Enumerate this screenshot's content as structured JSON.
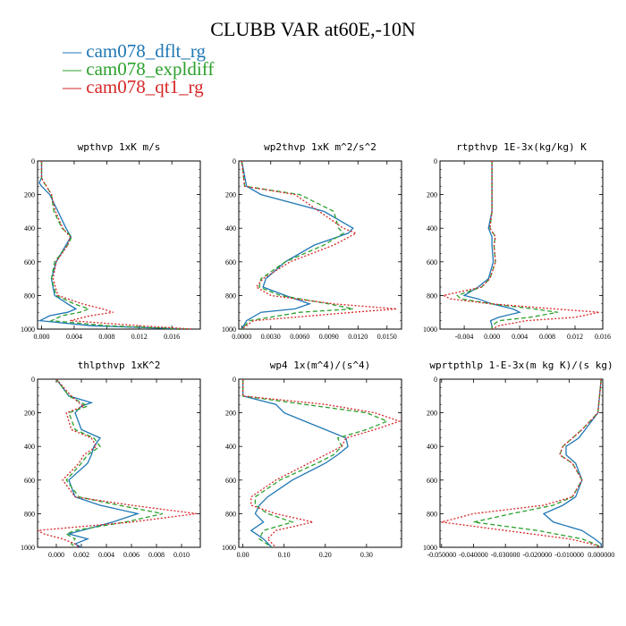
{
  "title": "CLUBB VAR at60E,-10N",
  "legend": [
    {
      "label": "— cam078_dflt_rg",
      "color": "#1f77b4"
    },
    {
      "label": "— cam078_expldiff",
      "color": "#2ca02c"
    },
    {
      "label": "— cam078_qt1_rg",
      "color": "#d62728"
    }
  ],
  "series_names": [
    "cam078_dflt_rg",
    "cam078_expldiff",
    "cam078_qt1_rg"
  ],
  "series_colors": [
    "#1f77b4",
    "#2ca02c",
    "#d62728"
  ],
  "series_dash": [
    "",
    "5 3",
    "2 2"
  ],
  "chart_data": [
    {
      "type": "line",
      "title": "wpthvp  1xK m/s",
      "xlim": [
        -0.0005,
        0.0195
      ],
      "ylim": [
        1000,
        0
      ],
      "xticks": [
        0.0,
        0.004,
        0.008,
        0.012,
        0.016
      ],
      "xtick_labels": [
        "0.000",
        "0.004",
        "0.008",
        "0.012",
        "0.016"
      ],
      "yticks": [
        0,
        200,
        400,
        600,
        800,
        1000
      ],
      "ytick_labels": [
        "0",
        "200",
        "400",
        "600",
        "800",
        "1000"
      ],
      "y": [
        0,
        100,
        130,
        150,
        200,
        300,
        400,
        450,
        500,
        600,
        700,
        800,
        850,
        880,
        900,
        920,
        950,
        980,
        1000
      ],
      "series": [
        {
          "name": "cam078_dflt_rg",
          "x": [
            0.0,
            0.0,
            -0.0003,
            0.0,
            0.001,
            0.002,
            0.003,
            0.0036,
            0.003,
            0.0018,
            0.0012,
            0.0016,
            0.0032,
            0.0042,
            0.0032,
            0.001,
            -0.0002,
            0.006,
            0.018
          ]
        },
        {
          "name": "cam078_expldiff",
          "x": [
            0.0,
            0.0,
            0.0003,
            0.0006,
            0.0012,
            0.0015,
            0.0025,
            0.0037,
            0.0032,
            0.0016,
            0.0012,
            0.0018,
            0.004,
            0.0058,
            0.0047,
            0.0025,
            0.0012,
            0.008,
            0.018
          ]
        },
        {
          "name": "cam078_qt1_rg",
          "x": [
            0.0,
            0.0,
            0.0003,
            0.0006,
            0.0012,
            0.0017,
            0.0026,
            0.0035,
            0.0032,
            0.0018,
            0.0014,
            0.002,
            0.005,
            0.0075,
            0.0088,
            0.006,
            0.0035,
            0.012,
            0.0185
          ]
        }
      ]
    },
    {
      "type": "line",
      "title": "wp2thvp  1xK m^2/s^2",
      "xlim": [
        -0.0003,
        0.0165
      ],
      "ylim": [
        1000,
        0
      ],
      "xticks": [
        0.0,
        0.003,
        0.006,
        0.009,
        0.012,
        0.015
      ],
      "xtick_labels": [
        "0.0000",
        "0.0030",
        "0.0060",
        "0.0090",
        "0.0120",
        "0.0150"
      ],
      "yticks": [
        0,
        200,
        400,
        600,
        800,
        1000
      ],
      "ytick_labels": [
        "0",
        "200",
        "400",
        "600",
        "800",
        "1000"
      ],
      "y": [
        0,
        150,
        200,
        300,
        400,
        430,
        500,
        600,
        700,
        750,
        800,
        850,
        880,
        900,
        950,
        1000
      ],
      "series": [
        {
          "name": "cam078_dflt_rg",
          "x": [
            0.0,
            0.0005,
            0.002,
            0.0085,
            0.0115,
            0.011,
            0.0075,
            0.0045,
            0.0025,
            0.0022,
            0.0045,
            0.007,
            0.0055,
            0.002,
            0.0005,
            0.0
          ],
          "y": [
            0,
            150,
            200,
            300,
            400,
            430,
            500,
            600,
            700,
            750,
            800,
            850,
            880,
            900,
            950,
            1000
          ]
        },
        {
          "name": "cam078_expldiff",
          "x": [
            0.0,
            0.0003,
            0.006,
            0.0095,
            0.01,
            0.0105,
            0.0085,
            0.0045,
            0.002,
            0.0018,
            0.004,
            0.009,
            0.0115,
            0.006,
            0.0008,
            0.0
          ],
          "y": [
            0,
            150,
            200,
            300,
            400,
            430,
            500,
            600,
            700,
            750,
            800,
            850,
            880,
            900,
            950,
            1000
          ]
        },
        {
          "name": "cam078_qt1_rg",
          "x": [
            0.0,
            0.0003,
            0.0055,
            0.008,
            0.0105,
            0.0118,
            0.0095,
            0.005,
            0.0022,
            0.0015,
            0.003,
            0.0095,
            0.016,
            0.0115,
            0.0012,
            0.0
          ],
          "y": [
            0,
            150,
            200,
            300,
            400,
            430,
            500,
            600,
            700,
            750,
            800,
            850,
            880,
            900,
            950,
            1000
          ]
        }
      ]
    },
    {
      "type": "line",
      "title": "rtpthvp  1E-3x(kg/kg) K",
      "xlim": [
        -0.0075,
        0.016
      ],
      "ylim": [
        1000,
        0
      ],
      "xticks": [
        -0.004,
        0.0,
        0.004,
        0.008,
        0.012,
        0.016
      ],
      "xtick_labels": [
        "-0.004",
        "0.000",
        "0.004",
        "0.008",
        "0.012",
        "0.016"
      ],
      "yticks": [
        0,
        200,
        400,
        600,
        800,
        1000
      ],
      "ytick_labels": [
        "0",
        "200",
        "400",
        "600",
        "800",
        "1000"
      ],
      "y": [
        0,
        300,
        400,
        450,
        500,
        600,
        700,
        750,
        800,
        820,
        850,
        880,
        900,
        930,
        950,
        980,
        1000
      ],
      "series": [
        {
          "name": "cam078_dflt_rg",
          "x": [
            0.0,
            0.0,
            -0.0005,
            0.0,
            0.0,
            0.0002,
            -0.0005,
            -0.002,
            -0.004,
            -0.002,
            0.0,
            0.003,
            0.004,
            0.001,
            -0.0002,
            0.0,
            0.0
          ]
        },
        {
          "name": "cam078_expldiff",
          "x": [
            0.0,
            0.0,
            -0.0003,
            0.0005,
            0.0003,
            0.0005,
            -0.0003,
            -0.0015,
            -0.005,
            -0.0045,
            0.0,
            0.006,
            0.0095,
            0.0055,
            0.001,
            0.0,
            0.0
          ]
        },
        {
          "name": "cam078_qt1_rg",
          "x": [
            0.0,
            0.0,
            -0.0003,
            0.0005,
            0.0003,
            0.0005,
            -0.0003,
            -0.0015,
            -0.007,
            -0.006,
            0.0,
            0.009,
            0.0155,
            0.012,
            0.005,
            0.001,
            0.0
          ]
        }
      ]
    },
    {
      "type": "line",
      "title": "thlpthvp  1xK^2",
      "xlim": [
        -0.0015,
        0.0115
      ],
      "ylim": [
        1000,
        0
      ],
      "xticks": [
        0.0,
        0.002,
        0.004,
        0.006,
        0.008,
        0.01
      ],
      "xtick_labels": [
        "0.000",
        "0.002",
        "0.004",
        "0.006",
        "0.008",
        "0.010"
      ],
      "yticks": [
        0,
        200,
        400,
        600,
        800,
        1000
      ],
      "ytick_labels": [
        "0",
        "200",
        "400",
        "600",
        "800",
        "1000"
      ],
      "y": [
        0,
        100,
        140,
        160,
        200,
        300,
        350,
        400,
        450,
        500,
        600,
        700,
        750,
        800,
        850,
        900,
        920,
        950,
        980,
        1000
      ],
      "series": [
        {
          "name": "cam078_dflt_rg",
          "x": [
            0.0,
            0.001,
            0.0028,
            0.002,
            0.0015,
            0.002,
            0.0035,
            0.003,
            0.0028,
            0.0025,
            0.001,
            0.0015,
            0.0035,
            0.0065,
            0.0045,
            0.002,
            0.001,
            0.0025,
            0.0015,
            0.002
          ]
        },
        {
          "name": "cam078_expldiff",
          "x": [
            0.0,
            0.001,
            0.002,
            0.0025,
            0.001,
            0.0015,
            0.003,
            0.0035,
            0.0025,
            0.002,
            0.0008,
            0.0018,
            0.005,
            0.0085,
            0.0055,
            0.0015,
            0.0008,
            0.0015,
            0.0012,
            0.0015
          ]
        },
        {
          "name": "cam078_qt1_rg",
          "x": [
            0.0,
            0.0012,
            0.0018,
            0.0022,
            0.0008,
            0.0012,
            0.0028,
            0.0032,
            0.0022,
            0.0018,
            0.0005,
            0.0015,
            0.006,
            0.0112,
            0.006,
            -0.0015,
            -0.001,
            0.0005,
            0.0015,
            0.0018
          ]
        }
      ]
    },
    {
      "type": "line",
      "title": "wp4  1x(m^4)/(s^4)",
      "xlim": [
        -0.01,
        0.385
      ],
      "ylim": [
        1000,
        0
      ],
      "xticks": [
        0.0,
        0.1,
        0.2,
        0.3
      ],
      "xtick_labels": [
        "0.00",
        "0.10",
        "0.20",
        "0.30"
      ],
      "yticks": [
        0,
        200,
        400,
        600,
        800,
        1000
      ],
      "ytick_labels": [
        "0",
        "200",
        "400",
        "600",
        "800",
        "1000"
      ],
      "y": [
        0,
        100,
        150,
        200,
        250,
        300,
        350,
        400,
        450,
        500,
        600,
        700,
        750,
        800,
        850,
        900,
        950,
        1000
      ],
      "series": [
        {
          "name": "cam078_dflt_rg",
          "x": [
            0.0,
            0.0,
            0.08,
            0.1,
            0.15,
            0.2,
            0.25,
            0.255,
            0.23,
            0.2,
            0.12,
            0.06,
            0.04,
            0.03,
            0.05,
            0.02,
            0.05,
            0.07
          ]
        },
        {
          "name": "cam078_expldiff",
          "x": [
            0.0,
            0.0,
            0.15,
            0.3,
            0.35,
            0.3,
            0.23,
            0.24,
            0.22,
            0.18,
            0.09,
            0.03,
            0.03,
            0.06,
            0.12,
            0.05,
            0.04,
            0.07
          ]
        },
        {
          "name": "cam078_qt1_rg",
          "x": [
            0.0,
            0.0,
            0.2,
            0.32,
            0.38,
            0.32,
            0.25,
            0.24,
            0.2,
            0.16,
            0.08,
            0.02,
            0.02,
            0.08,
            0.17,
            0.08,
            0.06,
            0.08
          ]
        }
      ]
    },
    {
      "type": "line",
      "title": "wprtpthlp  1-E-3x(m kg K)/(s kg)",
      "xlim": [
        -0.0505,
        0.0005
      ],
      "ylim": [
        1000,
        0
      ],
      "xticks": [
        -0.05,
        -0.04,
        -0.03,
        -0.02,
        -0.01,
        0.0
      ],
      "xtick_labels": [
        "-0.050000",
        "-0.040000",
        "-0.030000",
        "-0.020000",
        "-0.010000",
        "0.000000"
      ],
      "yticks": [
        0,
        200,
        400,
        600,
        800,
        1000
      ],
      "ytick_labels": [
        "0",
        "200",
        "400",
        "600",
        "800",
        "1000"
      ],
      "y": [
        0,
        200,
        300,
        350,
        400,
        450,
        500,
        600,
        700,
        750,
        800,
        850,
        900,
        950,
        980,
        1000
      ],
      "series": [
        {
          "name": "cam078_dflt_rg",
          "x": [
            0.0,
            -0.001,
            -0.005,
            -0.007,
            -0.011,
            -0.011,
            -0.008,
            -0.006,
            -0.008,
            -0.012,
            -0.018,
            -0.015,
            -0.006,
            -0.002,
            0.0,
            0.0
          ]
        },
        {
          "name": "cam078_expldiff",
          "x": [
            0.0,
            -0.001,
            -0.006,
            -0.009,
            -0.012,
            -0.013,
            -0.009,
            -0.006,
            -0.009,
            -0.015,
            -0.028,
            -0.04,
            -0.02,
            -0.006,
            -0.002,
            0.0
          ]
        },
        {
          "name": "cam078_qt1_rg",
          "x": [
            0.0,
            -0.001,
            -0.006,
            -0.009,
            -0.012,
            -0.013,
            -0.009,
            -0.006,
            -0.009,
            -0.018,
            -0.04,
            -0.05,
            -0.03,
            -0.01,
            -0.003,
            0.0
          ]
        }
      ]
    }
  ]
}
